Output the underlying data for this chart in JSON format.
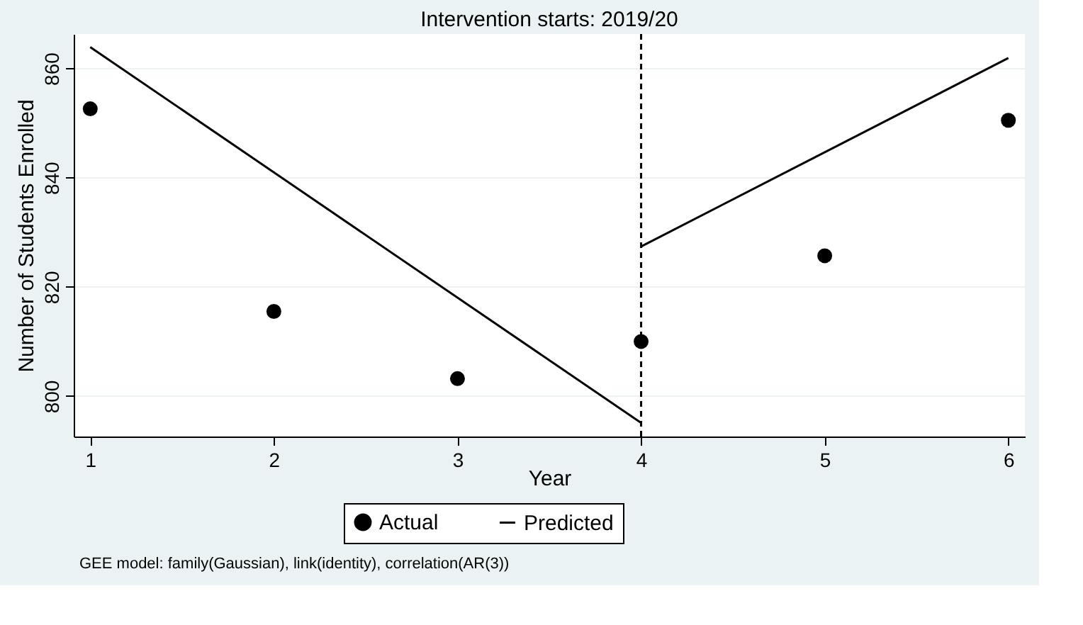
{
  "chart_data": {
    "type": "scatter",
    "title": "Intervention starts: 2019/20",
    "xlabel": "Year",
    "ylabel": "Number of Students Enrolled",
    "annotations": [
      "GEE model: family(Gaussian), link(identity), correlation(AR(3))"
    ],
    "series": [
      {
        "name": "Actual",
        "marker": "circle",
        "color": "#000000",
        "x": [
          1,
          2,
          3,
          4,
          5,
          6
        ],
        "values": [
          852.6,
          815.5,
          803.2,
          810.0,
          825.7,
          850.5
        ]
      },
      {
        "name": "Predicted",
        "type": "line",
        "marker": "none",
        "line_style": "solid",
        "color": "#000000",
        "x": [
          1,
          4,
          null,
          4,
          6
        ],
        "values": [
          863.9,
          795.1,
          null,
          827.4,
          861.9
        ]
      }
    ],
    "ref_lines": [
      {
        "axis": "x",
        "value": 4,
        "line_style": "dashed",
        "color": "#000000"
      }
    ],
    "xlim": [
      0.91,
      6.09
    ],
    "xticks": [
      1,
      2,
      3,
      4,
      5,
      6
    ],
    "ylim": [
      792.6,
      866.3
    ],
    "yticks": [
      800,
      820,
      840,
      860
    ],
    "grid": "y",
    "legend": "bottom"
  }
}
